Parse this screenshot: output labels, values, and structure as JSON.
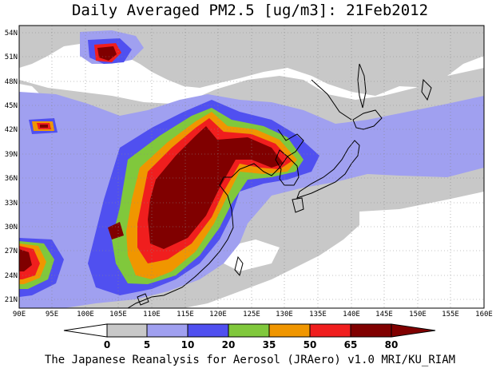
{
  "title": "Daily Averaged PM2.5 [ug/m3]: 21Feb2012",
  "credit": "The Japanese Reanalysis for Aerosol (JRAero) v1.0 MRI/KU_RIAM",
  "map": {
    "lon_range": [
      90,
      160
    ],
    "lat_range": [
      20,
      55
    ],
    "x_ticks": [
      "90E",
      "95E",
      "100E",
      "105E",
      "110E",
      "115E",
      "120E",
      "125E",
      "130E",
      "135E",
      "140E",
      "145E",
      "150E",
      "155E",
      "160E"
    ],
    "y_ticks": [
      "21N",
      "24N",
      "27N",
      "30N",
      "33N",
      "36N",
      "39N",
      "42N",
      "45N",
      "48N",
      "51N",
      "54N"
    ],
    "grid": "dotted"
  },
  "legend": {
    "labels": [
      "0",
      "5",
      "10",
      "20",
      "35",
      "50",
      "65",
      "80"
    ],
    "colors": [
      "#ffffff",
      "#c8c8c8",
      "#a0a0f0",
      "#5050f0",
      "#80c83c",
      "#f09600",
      "#f01e1e",
      "#800000"
    ]
  }
}
